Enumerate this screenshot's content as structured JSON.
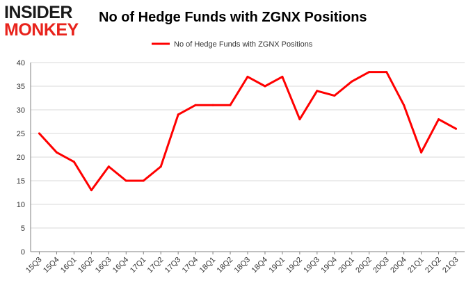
{
  "logo": {
    "line1": "INSIDER",
    "line2": "MONKEY"
  },
  "colors": {
    "series": "#ff0000",
    "grid": "#d9d9d9",
    "axis": "#808080",
    "logo_dark": "#1a1a1a",
    "logo_red": "#e8231c"
  },
  "chart_data": {
    "type": "line",
    "title": "No of Hedge Funds with ZGNX Positions",
    "xlabel": "",
    "ylabel": "",
    "ylim": [
      0,
      40
    ],
    "yticks": [
      0,
      5,
      10,
      15,
      20,
      25,
      30,
      35,
      40
    ],
    "grid": true,
    "legend": "top-center",
    "categories": [
      "15Q3",
      "15Q4",
      "16Q1",
      "16Q2",
      "16Q3",
      "16Q4",
      "17Q1",
      "17Q2",
      "17Q3",
      "17Q4",
      "18Q1",
      "18Q2",
      "18Q3",
      "18Q4",
      "19Q1",
      "19Q2",
      "19Q3",
      "19Q4",
      "20Q1",
      "20Q2",
      "20Q3",
      "20Q4",
      "21Q1",
      "21Q2",
      "21Q3"
    ],
    "series": [
      {
        "name": "No of Hedge Funds with ZGNX Positions",
        "values": [
          25,
          21,
          19,
          13,
          18,
          15,
          15,
          18,
          29,
          31,
          31,
          31,
          37,
          35,
          37,
          28,
          34,
          33,
          36,
          38,
          38,
          31,
          21,
          28,
          26
        ]
      }
    ]
  }
}
